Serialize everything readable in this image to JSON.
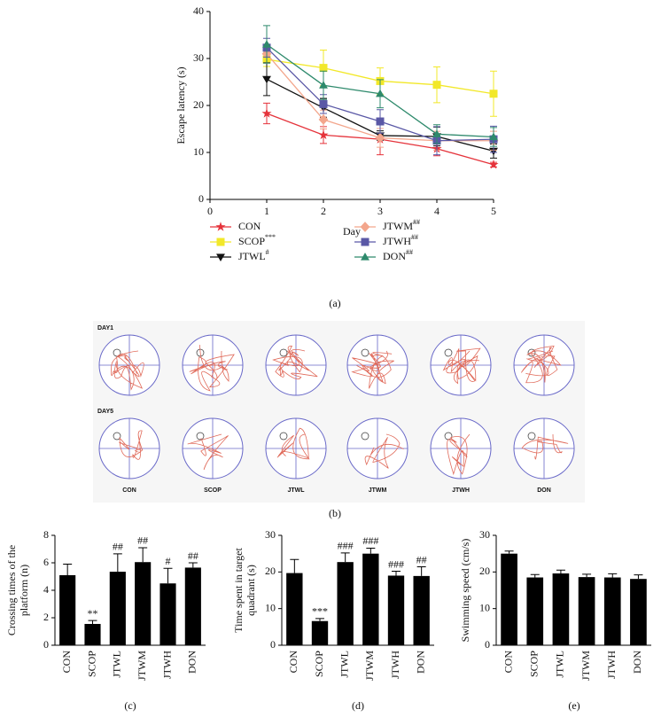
{
  "chart_data": [
    {
      "type": "line",
      "panel_label": "(a)",
      "xlabel": "Day",
      "ylabel": "Escape latency (s)",
      "x": [
        1,
        2,
        3,
        4,
        5
      ],
      "xlim": [
        0,
        5
      ],
      "xticks": [
        0,
        1,
        2,
        3,
        4,
        5
      ],
      "ylim": [
        0,
        40
      ],
      "yticks": [
        0,
        10,
        20,
        30,
        40
      ],
      "series": [
        {
          "name": "CON",
          "significance": null,
          "color": "#e5333b",
          "marker": "star",
          "values": [
            18.3,
            13.7,
            12.8,
            10.8,
            7.4
          ],
          "errors": [
            2.2,
            1.8,
            3.3,
            1.5,
            0.5
          ]
        },
        {
          "name": "SCOP",
          "significance": "***",
          "color": "#f2e829",
          "marker": "square",
          "values": [
            29.8,
            28.0,
            25.2,
            24.4,
            22.5
          ],
          "errors": [
            1.5,
            3.8,
            2.8,
            3.8,
            4.8
          ]
        },
        {
          "name": "JTWL",
          "significance": "#",
          "color": "#111111",
          "marker": "triangle-down",
          "values": [
            25.6,
            19.5,
            13.6,
            13.4,
            10.3
          ],
          "errors": [
            3.5,
            2.0,
            1.0,
            2.0,
            1.5
          ]
        },
        {
          "name": "JTWM",
          "significance": "##",
          "color": "#f3a68c",
          "marker": "diamond",
          "values": [
            31.0,
            17.0,
            13.1,
            12.5,
            12.5
          ],
          "errors": [
            2.0,
            2.0,
            2.0,
            2.0,
            2.0
          ]
        },
        {
          "name": "JTWH",
          "significance": "##",
          "color": "#5a58a6",
          "marker": "square",
          "values": [
            32.3,
            20.3,
            16.6,
            12.5,
            12.8
          ],
          "errors": [
            2.0,
            2.0,
            2.5,
            3.0,
            2.8
          ]
        },
        {
          "name": "DON",
          "significance": "##",
          "color": "#2e8a6c",
          "marker": "triangle-up",
          "values": [
            33.0,
            24.3,
            22.5,
            13.9,
            13.3
          ],
          "errors": [
            4.0,
            3.0,
            3.0,
            2.0,
            2.0
          ]
        }
      ]
    },
    {
      "type": "bar",
      "panel_label": "(c)",
      "ylabel": [
        "Crossing times of the",
        "platform (n)"
      ],
      "color": "#000000",
      "categories": [
        "CON",
        "SCOP",
        "JTWL",
        "JTWM",
        "JTWH",
        "DON"
      ],
      "values": [
        5.1,
        1.55,
        5.35,
        6.05,
        4.5,
        5.65
      ],
      "errors": [
        0.8,
        0.25,
        1.3,
        1.05,
        1.1,
        0.35
      ],
      "annotations": [
        null,
        "**",
        "##",
        "##",
        "#",
        "##"
      ],
      "ylim": [
        0,
        8
      ],
      "yticks": [
        0,
        2,
        4,
        6,
        8
      ]
    },
    {
      "type": "bar",
      "panel_label": "(d)",
      "ylabel": [
        "Time spent in target",
        "quadrant (s)"
      ],
      "color": "#000000",
      "categories": [
        "CON",
        "SCOP",
        "JTWL",
        "JTWM",
        "JTWH",
        "DON"
      ],
      "values": [
        19.7,
        6.6,
        22.7,
        25.0,
        19.0,
        18.9
      ],
      "errors": [
        3.7,
        0.7,
        2.5,
        1.5,
        1.2,
        2.5
      ],
      "annotations": [
        null,
        "***",
        "###",
        "###",
        "###",
        "##"
      ],
      "ylim": [
        0,
        30
      ],
      "yticks": [
        0,
        10,
        20,
        30
      ]
    },
    {
      "type": "bar",
      "panel_label": "(e)",
      "ylabel": [
        "Swimming speed (cm/s)"
      ],
      "color": "#000000",
      "categories": [
        "CON",
        "SCOP",
        "JTWL",
        "JTWM",
        "JTWH",
        "DON"
      ],
      "values": [
        25.0,
        18.5,
        19.6,
        18.6,
        18.5,
        18.1
      ],
      "errors": [
        0.7,
        0.8,
        0.9,
        0.8,
        1.0,
        1.1
      ],
      "annotations": [
        null,
        null,
        null,
        null,
        null,
        null
      ],
      "ylim": [
        0,
        30
      ],
      "yticks": [
        0,
        10,
        20,
        30
      ]
    }
  ],
  "track_panel": {
    "label": "(b)",
    "rows": [
      "DAY1",
      "DAY5"
    ],
    "columns": [
      "CON",
      "SCOP",
      "JTWL",
      "JTWM",
      "JTWH",
      "DON"
    ]
  }
}
